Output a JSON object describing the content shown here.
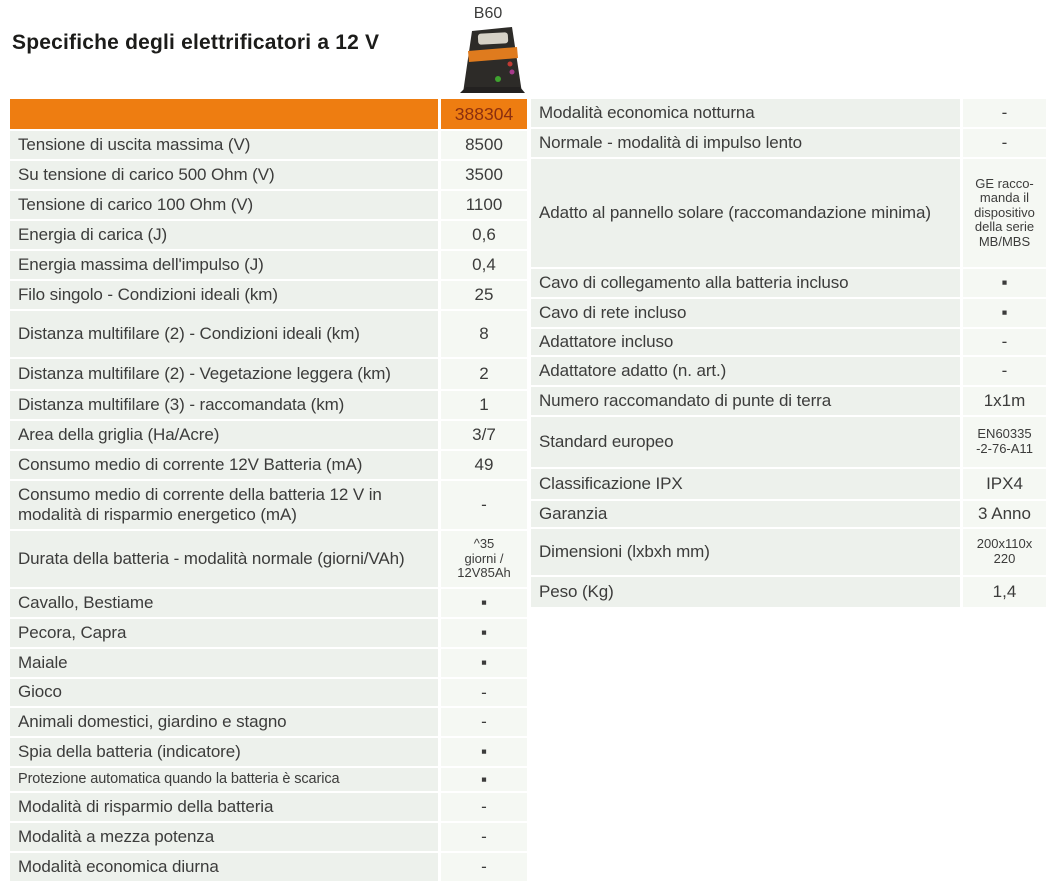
{
  "page": {
    "title": "Specifiche degli elettrificatori a 12 V"
  },
  "product": {
    "model": "B60",
    "code": "388304",
    "image": "b60-energizer-photo"
  },
  "colors": {
    "accent_orange": "#EE7D11",
    "code_text": "#8C2F0F",
    "label_cell_bg": "#EDF1EC",
    "value_cell_bg": "#F5F8F3",
    "text": "#3C3C3B"
  },
  "left_table": {
    "rows": [
      {
        "label": "Tensione di uscita massima (V)",
        "value": "8500"
      },
      {
        "label": "Su tensione di carico 500 Ohm (V)",
        "value": "3500"
      },
      {
        "label": "Tensione di carico 100 Ohm (V)",
        "value": "1100"
      },
      {
        "label": "Energia di carica (J)",
        "value": "0,6"
      },
      {
        "label": "Energia massima dell'impulso (J)",
        "value": "0,4"
      },
      {
        "label": "Filo singolo - Condizioni ideali (km)",
        "value": "25"
      },
      {
        "label": "Distanza multifilare (2) - Condizioni ideali (km)",
        "value": "8"
      },
      {
        "label": "Distanza multifilare (2) - Vegetazione leggera (km)",
        "value": "2"
      },
      {
        "label": "Distanza multifilare (3) - raccomandata (km)",
        "value": "1"
      },
      {
        "label": "Area della griglia (Ha/Acre)",
        "value": "3/7"
      },
      {
        "label": "Consumo medio di corrente 12V Batteria (mA)",
        "value": "49"
      },
      {
        "label": "Consumo medio di corrente della batteria 12 V in modalità di risparmio energetico (mA)",
        "value": "-"
      },
      {
        "label": "Durata della batteria - modalità normale (giorni/VAh)",
        "value": "^35\ngiorni /\n12V85Ah"
      },
      {
        "label": "Cavallo, Bestiame",
        "value": "▪"
      },
      {
        "label": "Pecora, Capra",
        "value": "▪"
      },
      {
        "label": "Maiale",
        "value": "▪"
      },
      {
        "label": "Gioco",
        "value": "-"
      },
      {
        "label": "Animali domestici, giardino e stagno",
        "value": "-"
      },
      {
        "label": "Spia della batteria (indicatore)",
        "value": "▪"
      },
      {
        "label": "Protezione automatica quando la batteria è scarica",
        "value": "▪"
      },
      {
        "label": "Modalità di risparmio della batteria",
        "value": "-"
      },
      {
        "label": "Modalità a mezza potenza",
        "value": "-"
      },
      {
        "label": "Modalità economica diurna",
        "value": "-"
      }
    ]
  },
  "right_table": {
    "rows": [
      {
        "label": "Modalità economica notturna",
        "value": "-"
      },
      {
        "label": "Normale - modalità di impulso lento",
        "value": "-"
      },
      {
        "label": "Adatto al pannello solare (raccomandazione minima)",
        "value": "GE racco-\nmanda il\ndispositivo\ndella serie\nMB/MBS"
      },
      {
        "label": "Cavo di collegamento alla batteria incluso",
        "value": "▪"
      },
      {
        "label": "Cavo di rete incluso",
        "value": "▪"
      },
      {
        "label": "Adattatore incluso",
        "value": "-"
      },
      {
        "label": "Adattatore adatto (n. art.)",
        "value": "-"
      },
      {
        "label": "Numero raccomandato di punte di terra",
        "value": "1x1m"
      },
      {
        "label": "Standard europeo",
        "value": "EN60335\n-2-76-A11"
      },
      {
        "label": "Classificazione IPX",
        "value": "IPX4"
      },
      {
        "label": "Garanzia",
        "value": "3 Anno"
      },
      {
        "label": "Dimensioni (lxbxh mm)",
        "value": "200x110x\n220"
      },
      {
        "label": "Peso (Kg)",
        "value": "1,4"
      }
    ]
  }
}
